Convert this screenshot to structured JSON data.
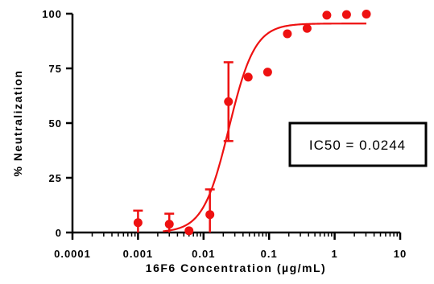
{
  "chart_data": {
    "type": "scatter",
    "xscale": "log",
    "xlim": [
      0.0001,
      10
    ],
    "ylim": [
      0,
      100
    ],
    "xlabel": "16F6 Concentration (µg/mL)",
    "ylabel": "% Neutralization",
    "x_ticks": [
      "0.0001",
      "0.001",
      "0.01",
      "0.1",
      "1",
      "10"
    ],
    "y_ticks": [
      "0",
      "25",
      "50",
      "75",
      "100"
    ],
    "series": [
      {
        "color": "#ee1111",
        "points": [
          {
            "x": 0.001,
            "y": 4.5,
            "err": 5.5
          },
          {
            "x": 0.003,
            "y": 3.8,
            "err": 4.8
          },
          {
            "x": 0.006,
            "y": 0.8,
            "err": 0
          },
          {
            "x": 0.0125,
            "y": 8.2,
            "err": 11.5
          },
          {
            "x": 0.024,
            "y": 59.8,
            "err": 18.0
          },
          {
            "x": 0.048,
            "y": 71.0,
            "err": 0
          },
          {
            "x": 0.095,
            "y": 73.3,
            "err": 0
          },
          {
            "x": 0.19,
            "y": 90.8,
            "err": 0
          },
          {
            "x": 0.38,
            "y": 93.3,
            "err": 0
          },
          {
            "x": 0.76,
            "y": 99.3,
            "err": 0
          },
          {
            "x": 1.52,
            "y": 99.6,
            "err": 0
          },
          {
            "x": 3.05,
            "y": 99.8,
            "err": 0
          }
        ]
      }
    ],
    "fit": {
      "model": "sigmoid",
      "bottom": 0,
      "top": 95.5,
      "ec50": 0.0244,
      "hill": 2.2,
      "x_range": [
        0.0024,
        3.05
      ]
    },
    "annotation": "IC50 = 0.0244"
  }
}
